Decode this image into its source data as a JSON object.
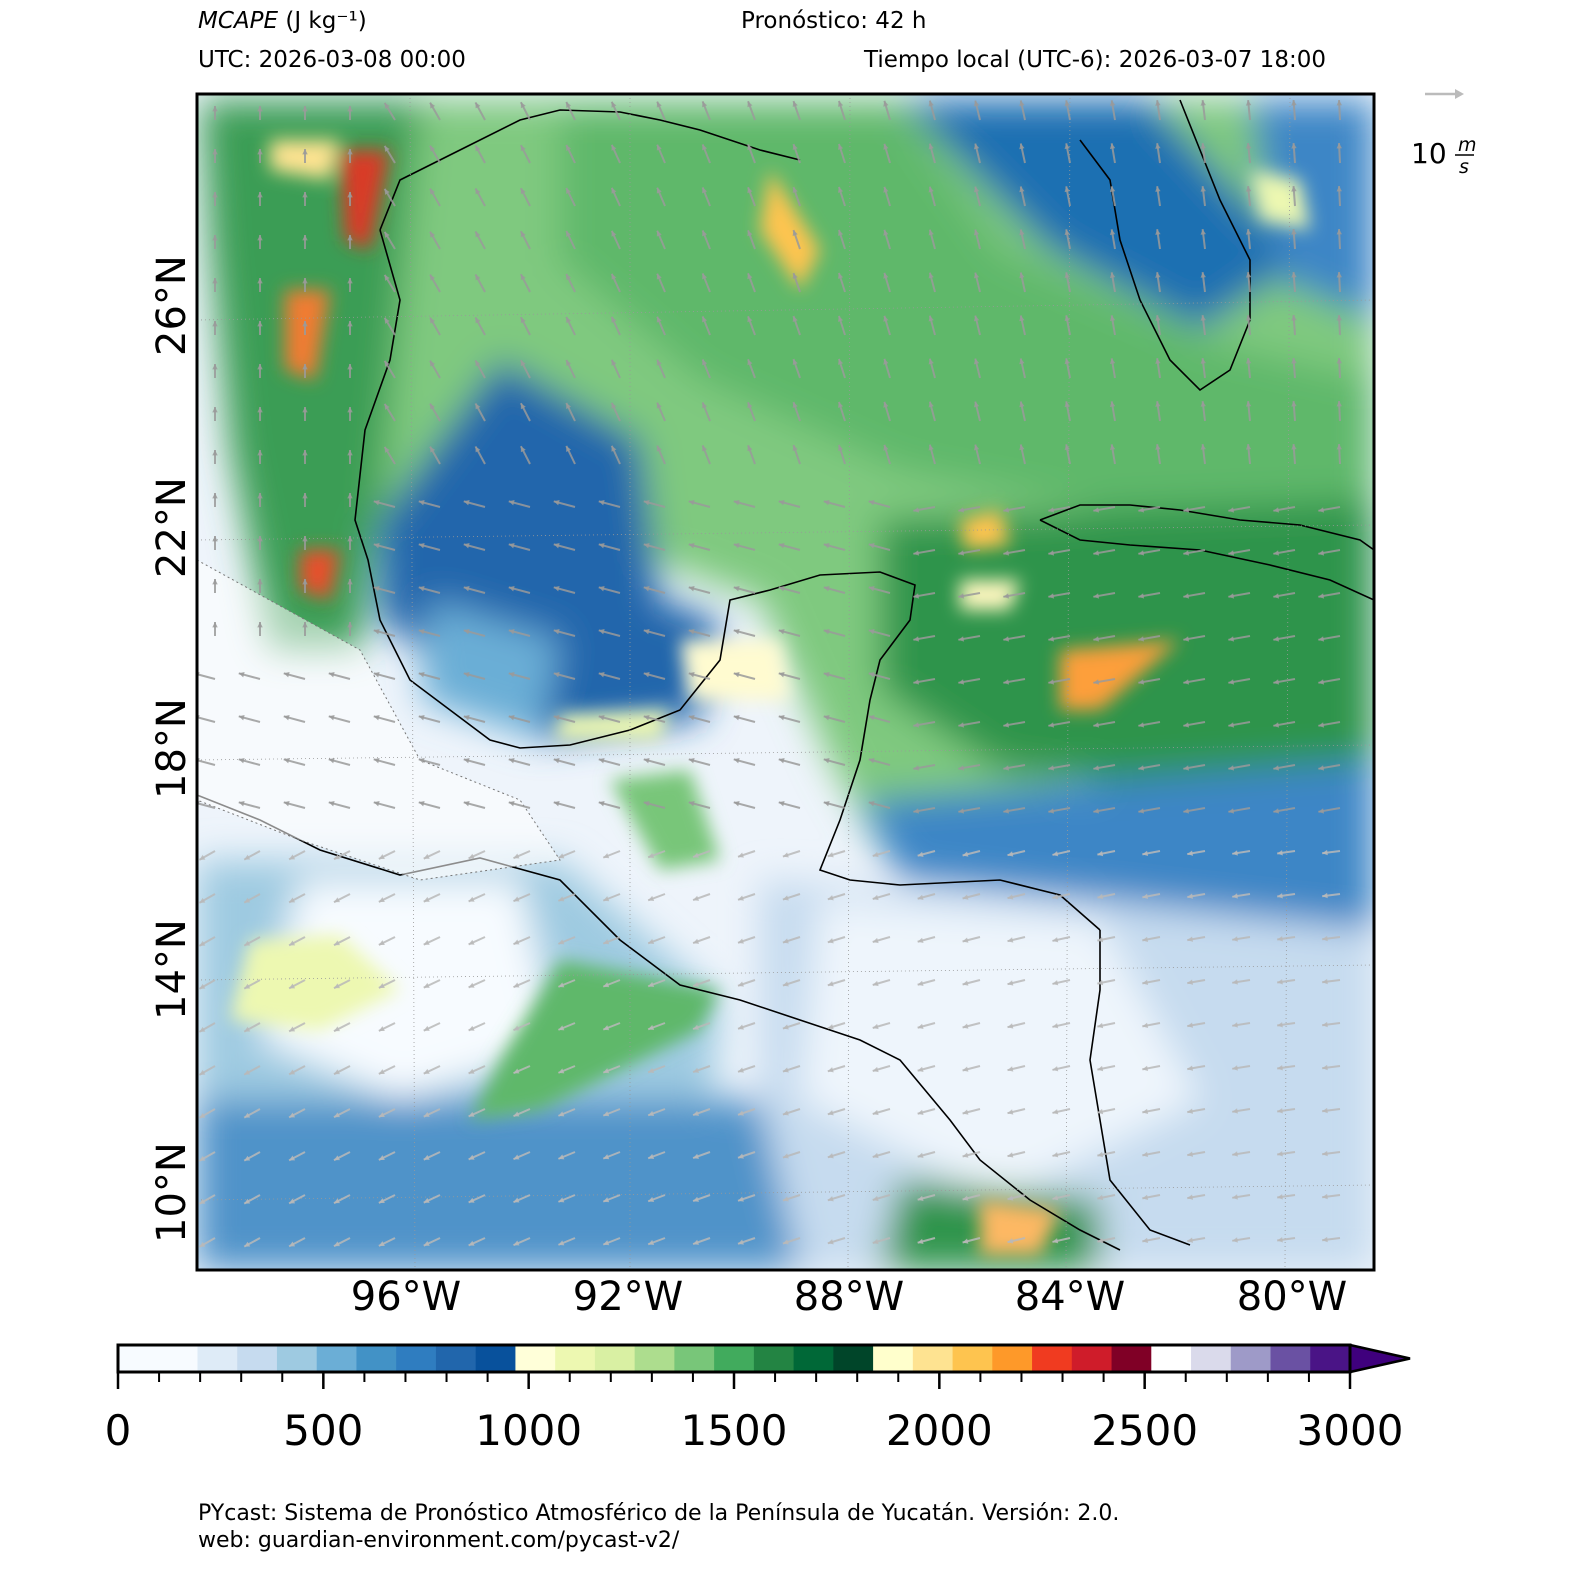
{
  "header": {
    "variable_label": "MCAPE",
    "units_label": "(J kg⁻¹)",
    "forecast": "Pronóstico: 42 h",
    "utc": "UTC:  2026-03-08 00:00",
    "local_time": "Tiempo local (UTC-6): 2026-03-07 18:00"
  },
  "wind_key": {
    "value": "10",
    "units_num": "m",
    "units_den": "s"
  },
  "map": {
    "lat_labels": [
      "26°N",
      "22°N",
      "18°N",
      "14°N",
      "10°N"
    ],
    "lon_labels": [
      "96°W",
      "92°W",
      "88°W",
      "84°W",
      "80°W"
    ],
    "land_color": "#f2f7fd",
    "coast_color": "#000000"
  },
  "colorbar": {
    "ticks": [
      "0",
      "500",
      "1000",
      "1500",
      "2000",
      "2500",
      "3000"
    ],
    "tick_values": [
      0,
      500,
      1000,
      1500,
      2000,
      2500,
      3000
    ],
    "step": 100,
    "extend": "max",
    "colors": [
      "#f7fbff",
      "#f7fbff",
      "#deebf7",
      "#c6dbef",
      "#9ecae1",
      "#6baed6",
      "#4292c6",
      "#2f7dc0",
      "#2166ac",
      "#08519c",
      "#ffffd9",
      "#edf8b1",
      "#d9f0a3",
      "#addd8e",
      "#78c679",
      "#41ab5d",
      "#238443",
      "#006837",
      "#004529",
      "#ffffcc",
      "#fee391",
      "#fec44f",
      "#fe9929",
      "#f03b20",
      "#cf1c2a",
      "#800026",
      "#ffffff",
      "#dadaeb",
      "#9e9ac8",
      "#6a51a3",
      "#4a1486",
      "#3f007d"
    ]
  },
  "footer": {
    "line1": "PYcast: Sistema de Pronóstico Atmosférico de la Península de Yucatán. Versión: 2.0.",
    "line2": "web: guardian-environment.com/pycast-v2/"
  }
}
